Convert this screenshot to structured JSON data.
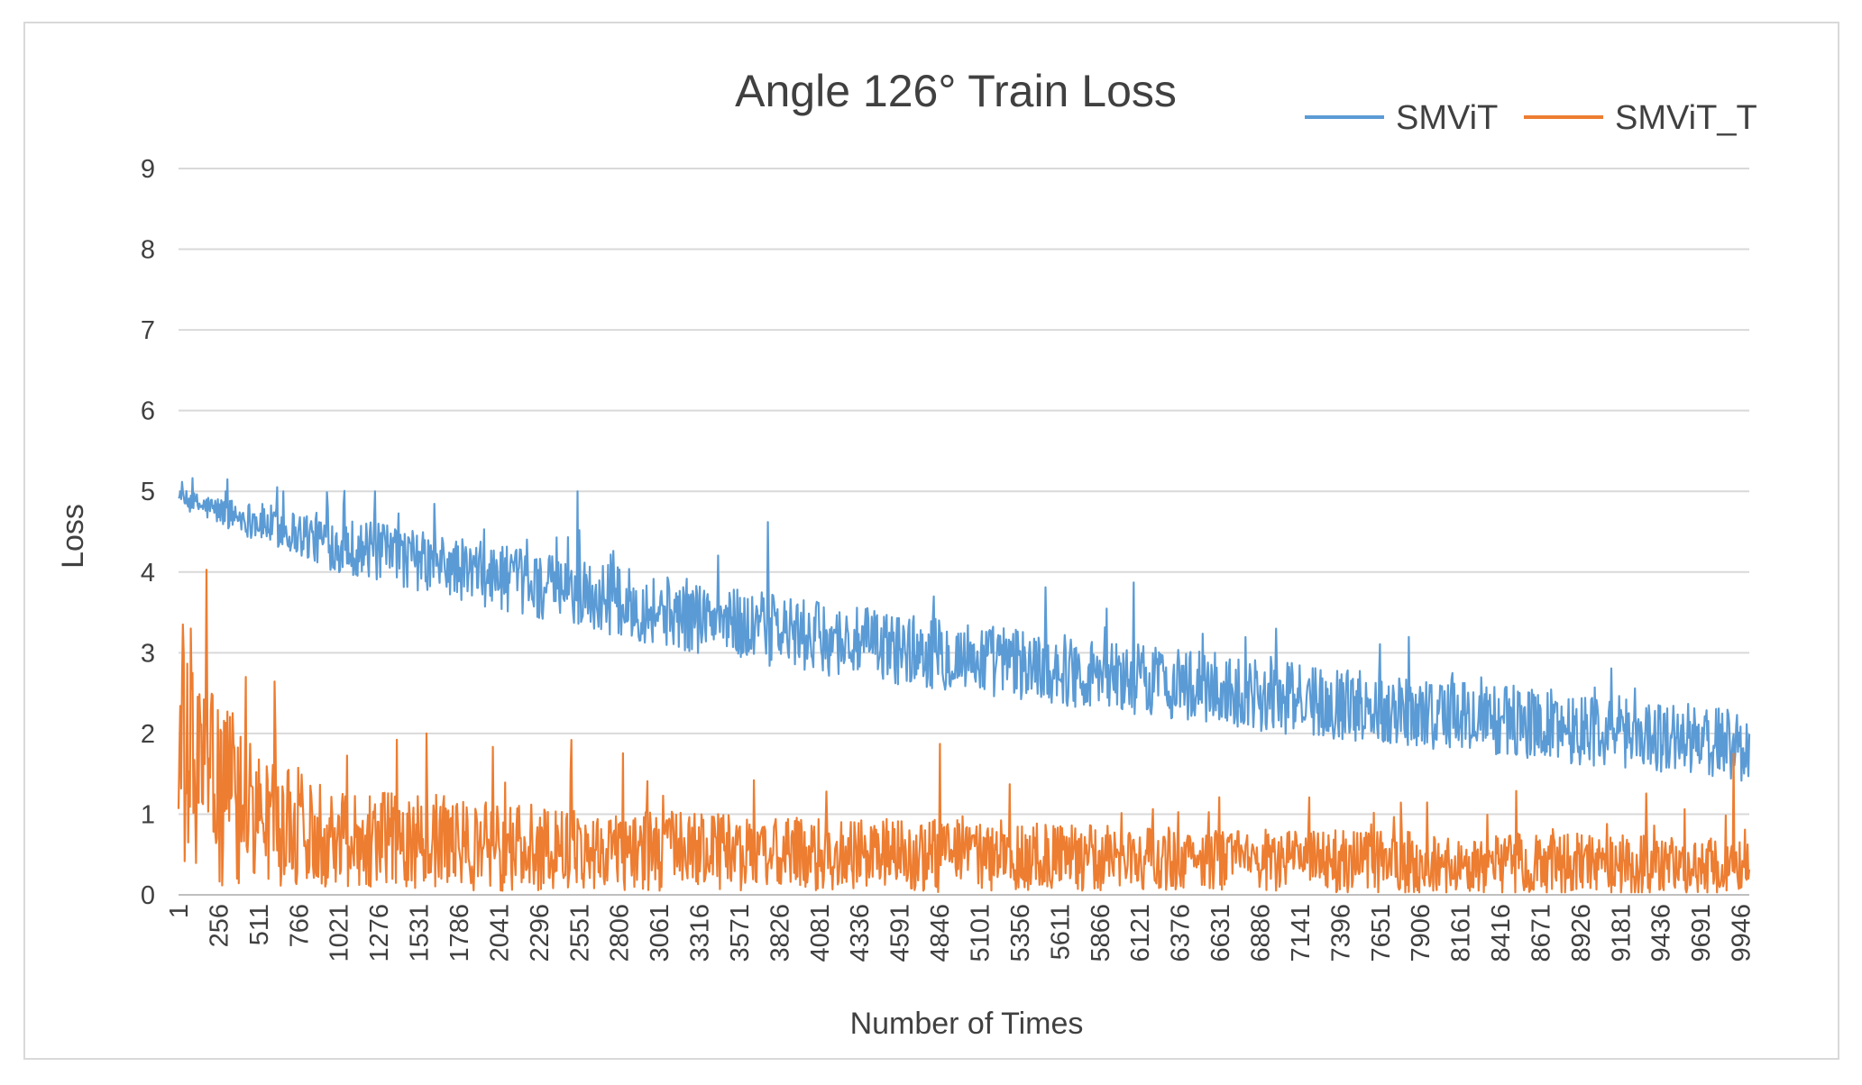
{
  "chart_data": {
    "type": "line",
    "title": "Angle 126°    Train Loss",
    "xlabel": "Number of Times",
    "ylabel": "Loss",
    "ylim": [
      0,
      9
    ],
    "yticks": [
      "0",
      "1",
      "2",
      "3",
      "4",
      "5",
      "6",
      "7",
      "8",
      "9"
    ],
    "x_range": [
      1,
      10000
    ],
    "xticks": [
      "1",
      "256",
      "511",
      "766",
      "1021",
      "1276",
      "1531",
      "1786",
      "2041",
      "2296",
      "2551",
      "2806",
      "3061",
      "3316",
      "3571",
      "3826",
      "4081",
      "4336",
      "4591",
      "4846",
      "5101",
      "5356",
      "5611",
      "5866",
      "6121",
      "6376",
      "6631",
      "6886",
      "7141",
      "7396",
      "7651",
      "7906",
      "8161",
      "8416",
      "8671",
      "8926",
      "9181",
      "9436",
      "9691",
      "9946"
    ],
    "grid": true,
    "legend_position": "top-right",
    "series": [
      {
        "name": "SMViT",
        "color": "#5b9bd5",
        "x": [
          1,
          1000,
          2000,
          3000,
          4000,
          5000,
          6000,
          7000,
          8000,
          9000,
          10000
        ],
        "mean": [
          4.9,
          4.35,
          3.95,
          3.55,
          3.2,
          2.95,
          2.7,
          2.45,
          2.25,
          2.05,
          1.85
        ],
        "spread": [
          0.12,
          0.35,
          0.4,
          0.45,
          0.45,
          0.45,
          0.45,
          0.45,
          0.45,
          0.45,
          0.45
        ],
        "spikes": [
          [
            10,
            5.0
          ],
          [
            300,
            5.0
          ],
          [
            670,
            5.0
          ],
          [
            1250,
            5.0
          ],
          [
            2540,
            5.0
          ],
          [
            3750,
            4.62
          ],
          [
            6080,
            3.87
          ]
        ]
      },
      {
        "name": "SMViT_T",
        "color": "#ed7d31",
        "x": [
          1,
          500,
          1000,
          2000,
          3000,
          4000,
          5000,
          6000,
          7000,
          8000,
          9000,
          10000
        ],
        "mean": [
          1.6,
          0.95,
          0.75,
          0.6,
          0.55,
          0.5,
          0.48,
          0.45,
          0.42,
          0.4,
          0.38,
          0.35
        ],
        "spread": [
          1.5,
          0.85,
          0.65,
          0.55,
          0.5,
          0.45,
          0.45,
          0.4,
          0.4,
          0.38,
          0.38,
          0.35
        ],
        "spikes": [
          [
            30,
            3.35
          ],
          [
            80,
            3.3
          ],
          [
            430,
            2.7
          ],
          [
            1580,
            2.0
          ],
          [
            2500,
            1.92
          ],
          [
            4850,
            1.87
          ],
          [
            9900,
            1.75
          ]
        ]
      }
    ]
  }
}
